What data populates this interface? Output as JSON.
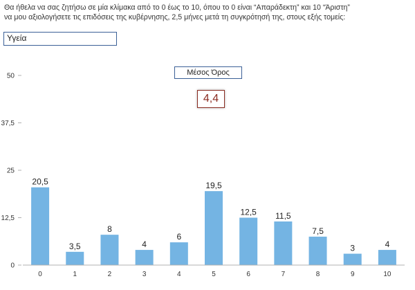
{
  "question": "Θα ήθελα να σας ζητήσω σε μία κλίμακα από το 0 έως το 10, όπου το 0 είναι “Απαράδεκτη” και 10 “Άριστη”\nνα μου αξιολογήσετε τις επιδόσεις της κυβέρνησης, 2,5 μήνες μετά τη συγκρότησή της, στους εξής τομείς:",
  "category": "Υγεία",
  "mean": {
    "label": "Μέσος Όρος",
    "value": "4,4"
  },
  "colors": {
    "bar": "#74b4e3",
    "axis": "#b0b0b0"
  },
  "chart_data": {
    "type": "bar",
    "categories": [
      "0",
      "1",
      "2",
      "3",
      "4",
      "5",
      "6",
      "7",
      "8",
      "9",
      "10"
    ],
    "values": [
      20.5,
      3.5,
      8,
      4,
      6,
      19.5,
      12.5,
      11.5,
      7.5,
      3,
      4
    ],
    "value_labels": [
      "20,5",
      "3,5",
      "8",
      "4",
      "6",
      "19,5",
      "12,5",
      "11,5",
      "7,5",
      "3",
      "4"
    ],
    "yticks": [
      0,
      12.5,
      25,
      37.5,
      50
    ],
    "ytick_labels": [
      "0",
      "12,5",
      "25",
      "37,5",
      "50"
    ],
    "ylim": [
      0,
      50
    ],
    "grid": false
  }
}
